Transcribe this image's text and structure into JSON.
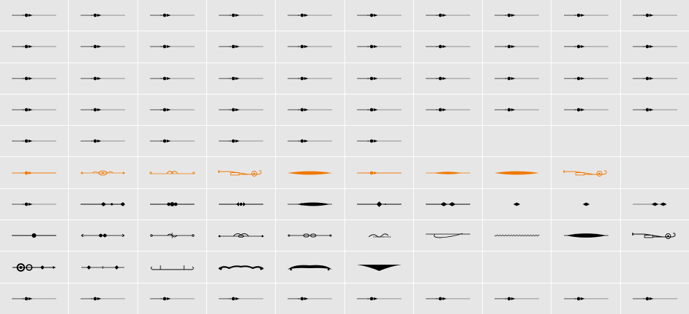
{
  "grid": {
    "columns": 10,
    "rows": 10,
    "colors": {
      "background": "#e6e6e6",
      "gridline": "#ffffff",
      "glyph_black": "#000000",
      "glyph_orange": "#f07800",
      "placeholder_line": "#8c8c8c"
    },
    "cells": [
      [
        "notdef",
        "notdef",
        "notdef",
        "notdef",
        "notdef",
        "notdef",
        "notdef",
        "notdef",
        "notdef",
        "notdef"
      ],
      [
        "notdef",
        "notdef",
        "notdef",
        "notdef",
        "notdef",
        "notdef",
        "notdef",
        "notdef",
        "notdef",
        "notdef"
      ],
      [
        "notdef",
        "notdef",
        "notdef",
        "notdef",
        "notdef",
        "notdef",
        "notdef",
        "notdef",
        "notdef",
        "notdef"
      ],
      [
        "notdef",
        "notdef",
        "notdef",
        "notdef",
        "notdef",
        "notdef",
        "notdef",
        "notdef",
        "notdef",
        "notdef"
      ],
      [
        "notdef",
        "notdef",
        "notdef",
        "notdef",
        "notdef",
        "notdef",
        "blank",
        "blank",
        "blank",
        "blank"
      ],
      [
        "notdef-orange",
        "scroll-orange",
        "ornate-orange",
        "pen-orange",
        "spindle-orange",
        "notdef-orange",
        "spindle-small-orange",
        "spindle-orange",
        "pen-orange",
        "blank"
      ],
      [
        "notdef",
        "dots-line",
        "beads",
        "dot-arrow",
        "spindle-black",
        "diamond-line",
        "double-dots",
        "diamond-small",
        "diamond-small",
        "dots-short"
      ],
      [
        "dot-line",
        "scroll-flourish",
        "ornate-line",
        "loop-ornament",
        "scroll-link",
        "swirl-small",
        "swash-curve",
        "zigzag",
        "spindle-thick",
        "pen-black"
      ],
      [
        "swirl-big",
        "cross-line",
        "bracket-line",
        "scroll-wide",
        "heavy-wide",
        "wing",
        "blank",
        "blank",
        "blank",
        "blank"
      ],
      [
        "notdef",
        "notdef",
        "notdef",
        "notdef",
        "notdef",
        "notdef",
        "notdef",
        "notdef",
        "notdef",
        "notdef"
      ]
    ]
  }
}
